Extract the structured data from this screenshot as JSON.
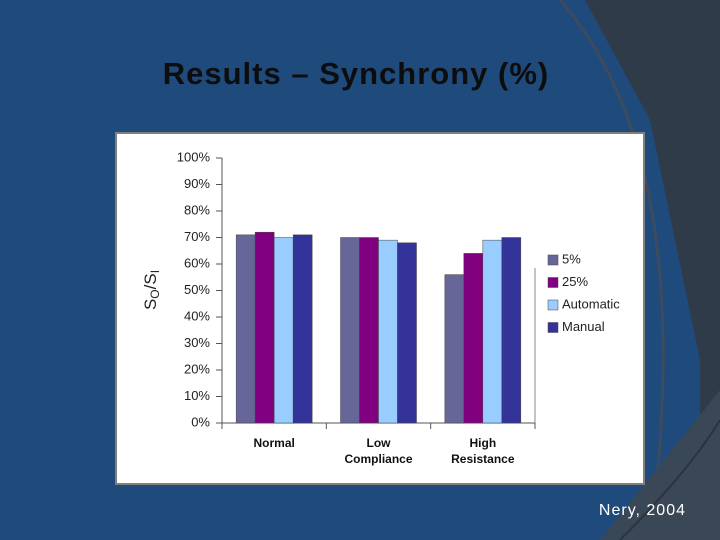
{
  "chart_data": {
    "type": "bar",
    "title": "Results – Synchrony (%)",
    "ylabel": [
      "S",
      "O",
      "/S",
      "I"
    ],
    "categories": [
      "Normal",
      "Low Compliance",
      "High Resistance"
    ],
    "series": [
      {
        "name": "5%",
        "color": "#666699",
        "values": [
          71,
          70,
          56
        ]
      },
      {
        "name": "25%",
        "color": "#800080",
        "values": [
          72,
          70,
          64
        ]
      },
      {
        "name": "Automatic",
        "color": "#99ccff",
        "values": [
          70,
          69,
          69
        ]
      },
      {
        "name": "Manual",
        "color": "#333399",
        "values": [
          71,
          68,
          70
        ]
      }
    ],
    "ylim": [
      0,
      100
    ],
    "yticks": [
      {
        "value": 0,
        "label": "0%"
      },
      {
        "value": 10,
        "label": "10%"
      },
      {
        "value": 20,
        "label": "20%"
      },
      {
        "value": 30,
        "label": "30%"
      },
      {
        "value": 40,
        "label": "40%"
      },
      {
        "value": 50,
        "label": "50%"
      },
      {
        "value": 60,
        "label": "60%"
      },
      {
        "value": 70,
        "label": "70%"
      },
      {
        "value": 80,
        "label": "80%"
      },
      {
        "value": 90,
        "label": "90%"
      },
      {
        "value": 100,
        "label": "100%"
      }
    ],
    "grid": false,
    "legend": "right"
  },
  "citation": "Nery, 2004"
}
